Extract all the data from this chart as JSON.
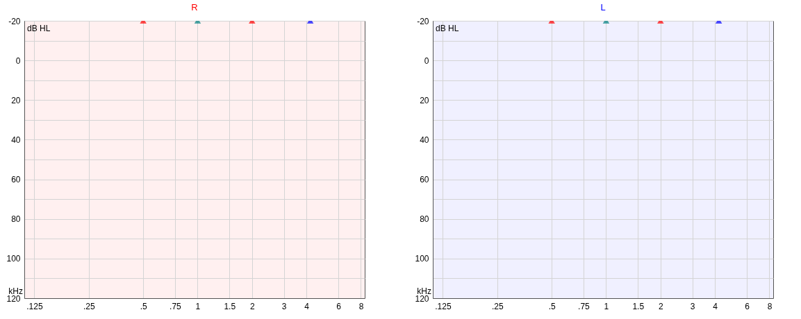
{
  "chart_data": [
    {
      "type": "scatter",
      "title": "R",
      "xlabel": "kHz",
      "ylabel": "dB HL",
      "log": "x",
      "grid": true,
      "marker": "triangle",
      "xlim": [
        0.11,
        8.4
      ],
      "xticks": [
        {
          "value": 0.125,
          "label": ".125"
        },
        {
          "value": 0.25,
          "label": ".25"
        },
        {
          "value": 0.5,
          "label": ".5"
        },
        {
          "value": 0.75,
          "label": ".75"
        },
        1,
        1.5,
        2,
        3,
        4,
        6,
        8
      ],
      "ylim": [
        120,
        -20
      ],
      "yticks": [
        -20,
        {
          "value": -10,
          "label": null
        },
        0,
        {
          "value": 10,
          "label": null
        },
        20,
        {
          "value": 30,
          "label": null
        },
        40,
        {
          "value": 50,
          "label": null
        },
        60,
        {
          "value": 70,
          "label": null
        },
        80,
        {
          "value": 90,
          "label": null
        },
        100,
        {
          "value": 110,
          "label": null
        },
        120
      ],
      "series": [
        {
          "x": [
            0.5,
            1,
            2,
            4.2
          ],
          "values": [
            -20,
            -20,
            -20,
            -20
          ],
          "colors": [
            "#ff0000",
            "#008080",
            "#ff0000",
            "#0000ff"
          ]
        }
      ]
    },
    {
      "type": "scatter",
      "title": "L",
      "xlabel": "kHz",
      "ylabel": "dB HL",
      "log": "x",
      "grid": true,
      "marker": "triangle",
      "xlim": [
        0.11,
        8.4
      ],
      "xticks": [
        {
          "value": 0.125,
          "label": ".125"
        },
        {
          "value": 0.25,
          "label": ".25"
        },
        {
          "value": 0.5,
          "label": ".5"
        },
        {
          "value": 0.75,
          "label": ".75"
        },
        1,
        1.5,
        2,
        3,
        4,
        6,
        8
      ],
      "ylim": [
        120,
        -20
      ],
      "yticks": [
        -20,
        {
          "value": -10,
          "label": null
        },
        0,
        {
          "value": 10,
          "label": null
        },
        20,
        {
          "value": 30,
          "label": null
        },
        40,
        {
          "value": 50,
          "label": null
        },
        60,
        {
          "value": 70,
          "label": null
        },
        80,
        {
          "value": 90,
          "label": null
        },
        100,
        {
          "value": 110,
          "label": null
        },
        120
      ],
      "series": [
        {
          "x": [
            0.5,
            1,
            2,
            4.2
          ],
          "values": [
            -20,
            -20,
            -20,
            -20
          ],
          "colors": [
            "#ff0000",
            "#008080",
            "#ff0000",
            "#0000ff"
          ]
        }
      ]
    }
  ]
}
